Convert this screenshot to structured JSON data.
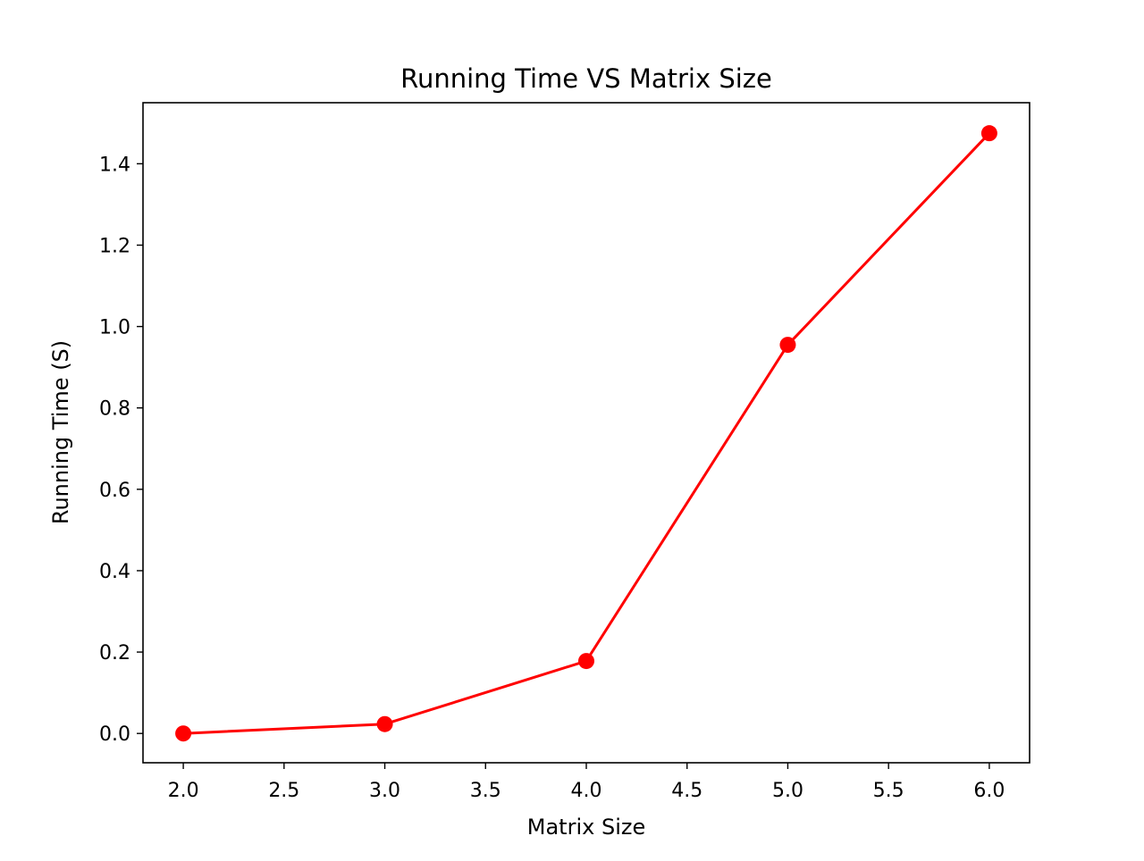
{
  "chart_data": {
    "type": "line",
    "title": "Running Time VS Matrix Size",
    "xlabel": "Matrix Size",
    "ylabel": "Running Time (S)",
    "x": [
      2.0,
      3.0,
      4.0,
      5.0,
      6.0
    ],
    "series": [
      {
        "values": [
          0.0,
          0.023,
          0.178,
          0.955,
          1.475
        ],
        "color": "#ff0000",
        "marker": "circle"
      }
    ],
    "xlim": [
      1.8,
      6.2
    ],
    "ylim": [
      -0.072,
      1.55
    ],
    "xticks": [
      2.0,
      2.5,
      3.0,
      3.5,
      4.0,
      4.5,
      5.0,
      5.5,
      6.0
    ],
    "xtick_labels": [
      "2.0",
      "2.5",
      "3.0",
      "3.5",
      "4.0",
      "4.5",
      "5.0",
      "5.5",
      "6.0"
    ],
    "yticks": [
      0.0,
      0.2,
      0.4,
      0.6,
      0.8,
      1.0,
      1.2,
      1.4
    ],
    "ytick_labels": [
      "0.0",
      "0.2",
      "0.4",
      "0.6",
      "0.8",
      "1.0",
      "1.2",
      "1.4"
    ],
    "grid": false,
    "legend": false
  }
}
